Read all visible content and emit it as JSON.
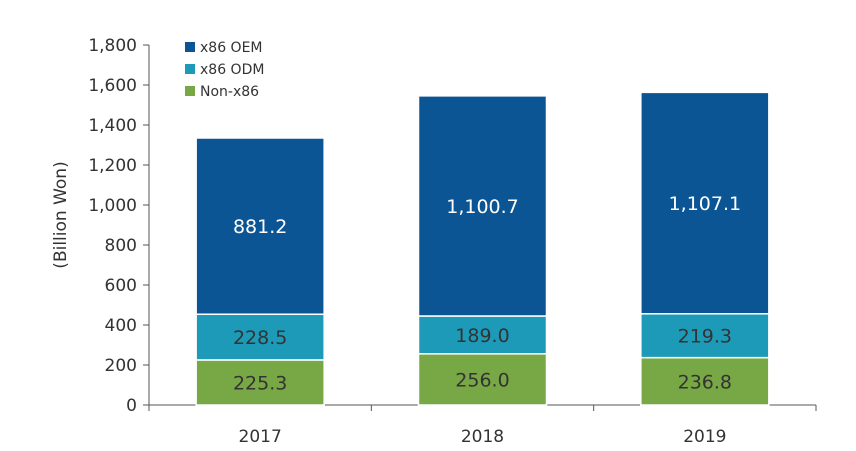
{
  "chart_data": {
    "type": "bar",
    "stacked": true,
    "categories": [
      "2017",
      "2018",
      "2019"
    ],
    "series": [
      {
        "name": "Non-x86",
        "values": [
          225.3,
          256.0,
          236.8
        ],
        "labels": [
          "225.3",
          "256.0",
          "236.8"
        ],
        "color": "#77a845",
        "label_color": "#333333"
      },
      {
        "name": "x86 ODM",
        "values": [
          228.5,
          189.0,
          219.3
        ],
        "labels": [
          "228.5",
          "189.0",
          "219.3"
        ],
        "color": "#1e9ab9",
        "label_color": "#333333"
      },
      {
        "name": "x86 OEM",
        "values": [
          881.2,
          1100.7,
          1107.1
        ],
        "labels": [
          "881.2",
          "1,100.7",
          "1,107.1"
        ],
        "color": "#0b5595",
        "label_color": "#ffffff"
      }
    ],
    "ylabel": "(Billion Won)",
    "ylim": [
      0,
      1800
    ],
    "yticks": [
      0,
      200,
      400,
      600,
      800,
      1000,
      1200,
      1400,
      1600,
      1800
    ],
    "ytick_labels": [
      "0",
      "200",
      "400",
      "600",
      "800",
      "1,000",
      "1,200",
      "1,400",
      "1,600",
      "1,800"
    ],
    "legend": {
      "placement": "top-left",
      "order": [
        "x86 OEM",
        "x86 ODM",
        "Non-x86"
      ]
    },
    "grid": false
  }
}
